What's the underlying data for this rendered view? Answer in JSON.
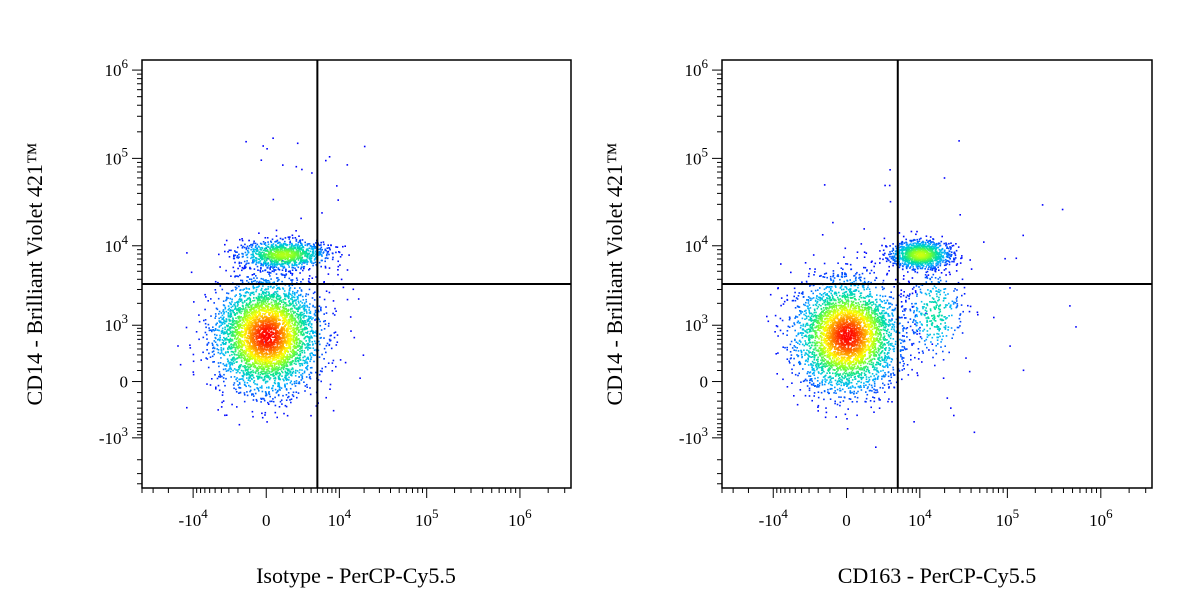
{
  "chart_data": [
    {
      "type": "scatter",
      "title": "",
      "xlabel": "Isotype - PerCP-Cy5.5",
      "ylabel": "CD14 - Brilliant Violet 421™",
      "scale": "biexponential",
      "x_ticks": [
        {
          "value": -10000,
          "base": "-10",
          "exp": "4"
        },
        {
          "value": 0,
          "base": "0",
          "exp": ""
        },
        {
          "value": 10000,
          "base": "10",
          "exp": "4"
        },
        {
          "value": 100000,
          "base": "10",
          "exp": "5"
        },
        {
          "value": 1000000,
          "base": "10",
          "exp": "6"
        }
      ],
      "y_ticks": [
        {
          "value": 1000000,
          "base": "10",
          "exp": "6"
        },
        {
          "value": 100000,
          "base": "10",
          "exp": "5"
        },
        {
          "value": 10000,
          "base": "10",
          "exp": "4"
        },
        {
          "value": 1000,
          "base": "10",
          "exp": "3"
        },
        {
          "value": 0,
          "base": "0",
          "exp": ""
        },
        {
          "value": -1000,
          "base": "-10",
          "exp": "3"
        }
      ],
      "gates": {
        "x": 5000,
        "y": 3500
      },
      "populations": [
        {
          "name": "",
          "x_center": 0,
          "y_center": 700,
          "x_spread": 2000,
          "y_spread": 1100,
          "relative_size": 0.78
        },
        {
          "name": "",
          "x_center": 1000,
          "y_center": 8000,
          "x_spread": 2500,
          "y_spread": 1800,
          "relative_size": 0.2
        }
      ],
      "colormap": [
        "#0000ff",
        "#00b4ff",
        "#00e0a0",
        "#7aff2a",
        "#ffff00",
        "#ff8a00",
        "#ff0000"
      ]
    },
    {
      "type": "scatter",
      "title": "",
      "xlabel": "CD163 - PerCP-Cy5.5",
      "ylabel": "CD14 - Brilliant Violet 421™",
      "scale": "biexponential",
      "x_ticks": [
        {
          "value": -10000,
          "base": "-10",
          "exp": "4"
        },
        {
          "value": 0,
          "base": "0",
          "exp": ""
        },
        {
          "value": 10000,
          "base": "10",
          "exp": "4"
        },
        {
          "value": 100000,
          "base": "10",
          "exp": "5"
        },
        {
          "value": 1000000,
          "base": "10",
          "exp": "6"
        }
      ],
      "y_ticks": [
        {
          "value": 1000000,
          "base": "10",
          "exp": "6"
        },
        {
          "value": 100000,
          "base": "10",
          "exp": "5"
        },
        {
          "value": 10000,
          "base": "10",
          "exp": "4"
        },
        {
          "value": 1000,
          "base": "10",
          "exp": "3"
        },
        {
          "value": 0,
          "base": "0",
          "exp": ""
        },
        {
          "value": -1000,
          "base": "-10",
          "exp": "3"
        }
      ],
      "gates": {
        "x": 5000,
        "y": 3500
      },
      "populations": [
        {
          "name": "",
          "x_center": 0,
          "y_center": 700,
          "x_spread": 2000,
          "y_spread": 1100,
          "relative_size": 0.72
        },
        {
          "name": "",
          "x_center": 10000,
          "y_center": 8000,
          "x_spread": 6000,
          "y_spread": 1800,
          "relative_size": 0.22
        },
        {
          "name": "",
          "x_center": 15000,
          "y_center": 1500,
          "x_spread": 8000,
          "y_spread": 1500,
          "relative_size": 0.06
        }
      ],
      "colormap": [
        "#0000ff",
        "#00b4ff",
        "#00e0a0",
        "#7aff2a",
        "#ffff00",
        "#ff8a00",
        "#ff0000"
      ]
    }
  ]
}
